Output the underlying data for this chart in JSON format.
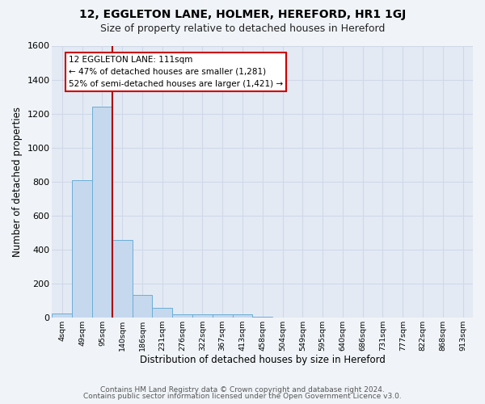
{
  "title": "12, EGGLETON LANE, HOLMER, HEREFORD, HR1 1GJ",
  "subtitle": "Size of property relative to detached houses in Hereford",
  "xlabel": "Distribution of detached houses by size in Hereford",
  "ylabel": "Number of detached properties",
  "bin_labels": [
    "4sqm",
    "49sqm",
    "95sqm",
    "140sqm",
    "186sqm",
    "231sqm",
    "276sqm",
    "322sqm",
    "367sqm",
    "413sqm",
    "458sqm",
    "504sqm",
    "549sqm",
    "595sqm",
    "640sqm",
    "686sqm",
    "731sqm",
    "777sqm",
    "822sqm",
    "868sqm",
    "913sqm"
  ],
  "bar_heights": [
    25,
    810,
    1240,
    455,
    130,
    58,
    18,
    18,
    18,
    18,
    5,
    0,
    0,
    0,
    0,
    0,
    0,
    0,
    0,
    0,
    0
  ],
  "bar_color": "#c5d8ee",
  "bar_edge_color": "#6aaed6",
  "vline_color": "#aa0000",
  "vline_x": 2.5,
  "ylim": [
    0,
    1600
  ],
  "yticks": [
    0,
    200,
    400,
    600,
    800,
    1000,
    1200,
    1400,
    1600
  ],
  "annotation_line1": "12 EGGLETON LANE: 111sqm",
  "annotation_line2": "← 47% of detached houses are smaller (1,281)",
  "annotation_line3": "52% of semi-detached houses are larger (1,421) →",
  "annotation_box_color": "#ffffff",
  "annotation_box_edge": "#cc0000",
  "footer1": "Contains HM Land Registry data © Crown copyright and database right 2024.",
  "footer2": "Contains public sector information licensed under the Open Government Licence v3.0.",
  "bg_color": "#f0f4f8",
  "plot_bg_color": "#e4eaf4",
  "grid_color": "#d0d8e8"
}
